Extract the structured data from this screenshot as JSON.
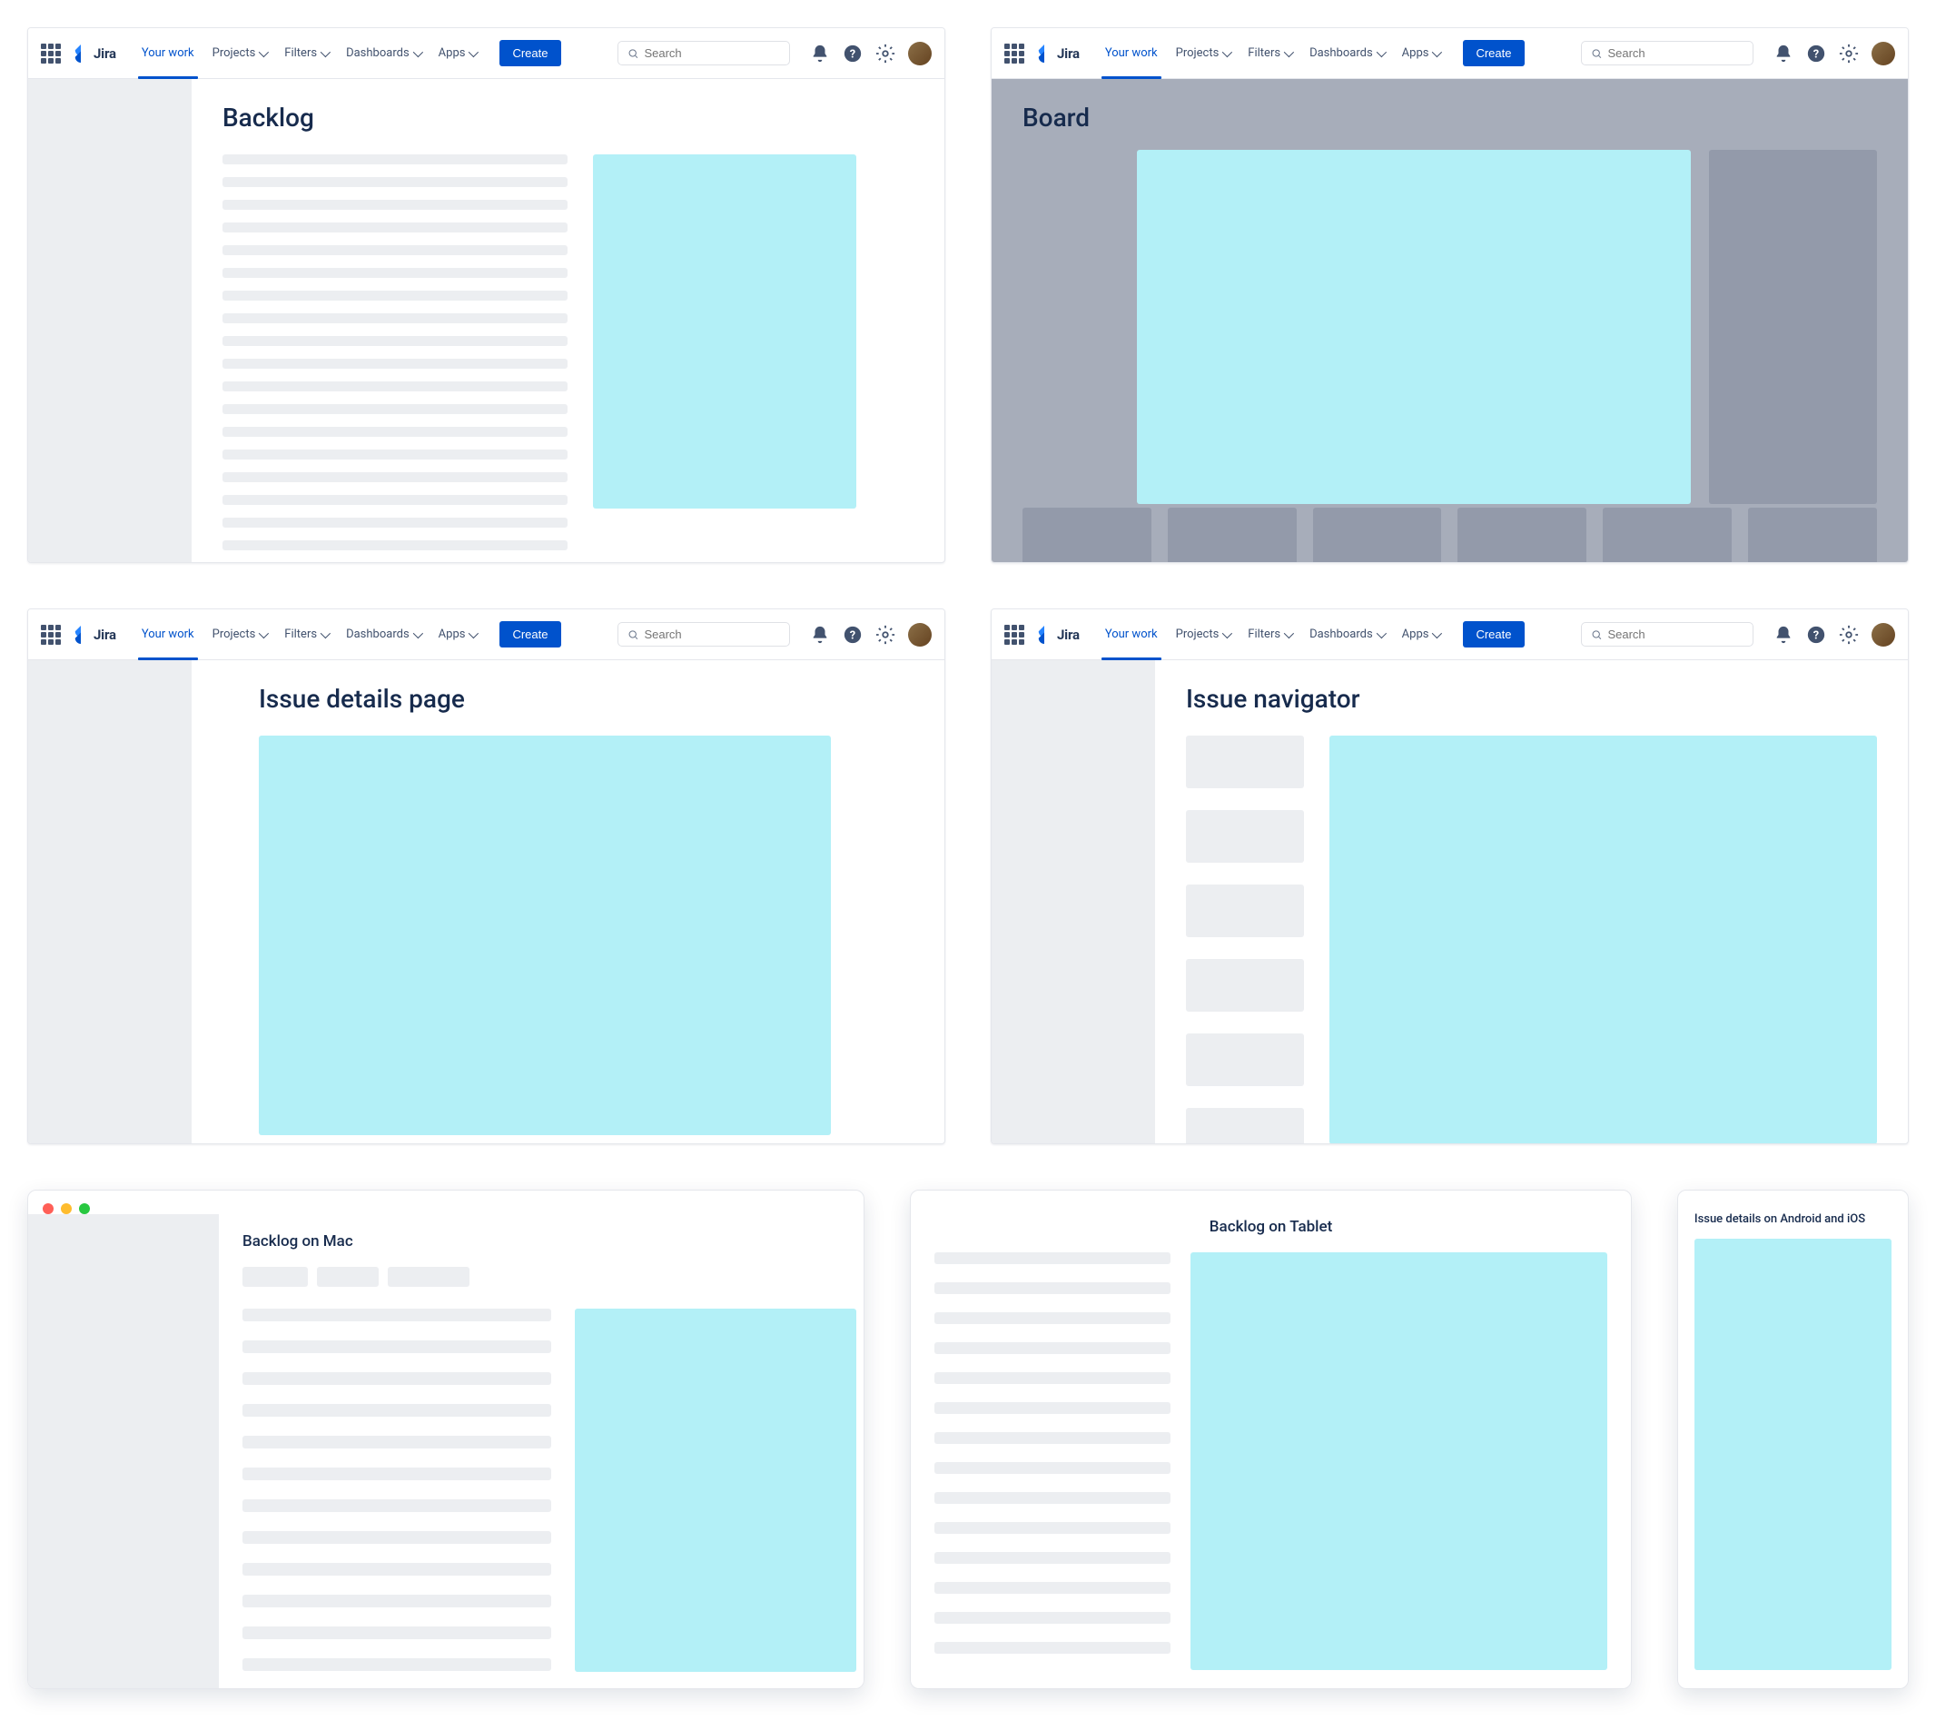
{
  "nav": {
    "product": "Jira",
    "items": [
      "Your work",
      "Projects",
      "Filters",
      "Dashboards",
      "Apps"
    ],
    "active_index": 0,
    "create": "Create",
    "search_placeholder": "Search"
  },
  "panels": {
    "backlog": {
      "title": "Backlog",
      "line_count": 21,
      "cyan_color": "#b3f0f7"
    },
    "board": {
      "title": "Board",
      "column_count": 6,
      "cyan_color": "#b3f0f7"
    },
    "issue_details": {
      "title": "Issue details page",
      "cyan_color": "#b3f0f7"
    },
    "issue_navigator": {
      "title": "Issue navigator",
      "list_count": 6,
      "cyan_color": "#b3f0f7"
    }
  },
  "bottom": {
    "mac": {
      "title": "Backlog on Mac",
      "line_count": 12
    },
    "tablet": {
      "title": "Backlog on Tablet",
      "line_count": 14
    },
    "mobile": {
      "title": "Issue details on Android and iOS"
    }
  },
  "colors": {
    "cyan": "#b3f0f7",
    "placeholder": "#eceef1",
    "primary": "#0052cc",
    "text_heading": "#172b4d",
    "board_bg": "#a7adba"
  }
}
